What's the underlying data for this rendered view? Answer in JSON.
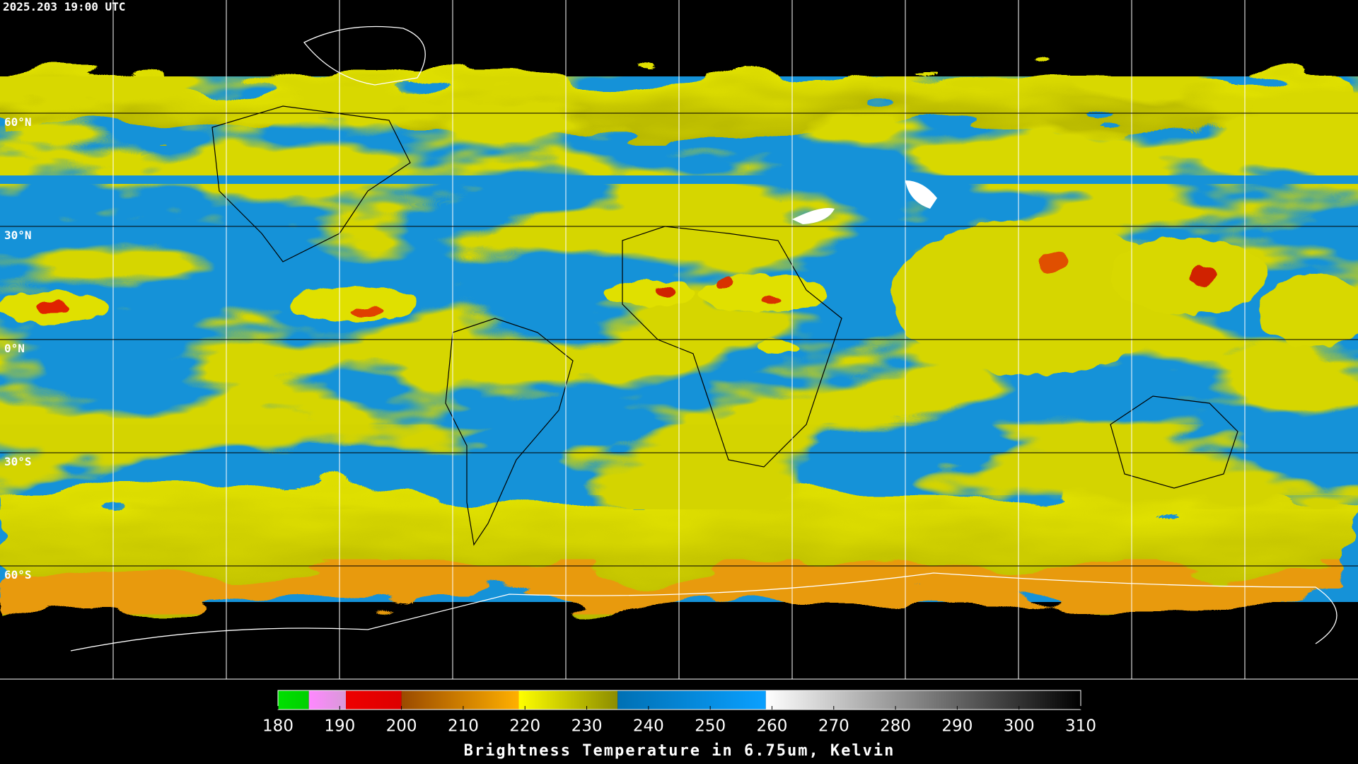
{
  "header": {
    "timestamp": "2025.203 19:00 UTC"
  },
  "map": {
    "lat_ticks": [
      {
        "value": 60,
        "label": "60°N"
      },
      {
        "value": 30,
        "label": "30°N"
      },
      {
        "value": 0,
        "label": "0°N"
      },
      {
        "value": -30,
        "label": "30°S"
      },
      {
        "value": -60,
        "label": "60°S"
      }
    ]
  },
  "colorbar": {
    "title": "Brightness Temperature in 6.75um, Kelvin",
    "lim": [
      180,
      310
    ],
    "ticks": [
      180,
      190,
      200,
      210,
      220,
      230,
      240,
      250,
      260,
      270,
      280,
      290,
      300,
      310
    ],
    "segments": [
      {
        "from": 180,
        "to": 185,
        "colors": [
          "#00e000",
          "#00d000"
        ]
      },
      {
        "from": 185,
        "to": 191,
        "colors": [
          "#ff88ff",
          "#d899d8"
        ]
      },
      {
        "from": 191,
        "to": 200,
        "colors": [
          "#ee0000",
          "#dd0000"
        ]
      },
      {
        "from": 200,
        "to": 219,
        "colors": [
          "#9a4a00",
          "#ffb000"
        ]
      },
      {
        "from": 219,
        "to": 235,
        "colors": [
          "#ffff00",
          "#8c8c00"
        ]
      },
      {
        "from": 235,
        "to": 259,
        "colors": [
          "#0070b4",
          "#0aa0ff"
        ]
      },
      {
        "from": 259,
        "to": 310,
        "colors": [
          "#ffffff",
          "#000000"
        ]
      }
    ]
  }
}
